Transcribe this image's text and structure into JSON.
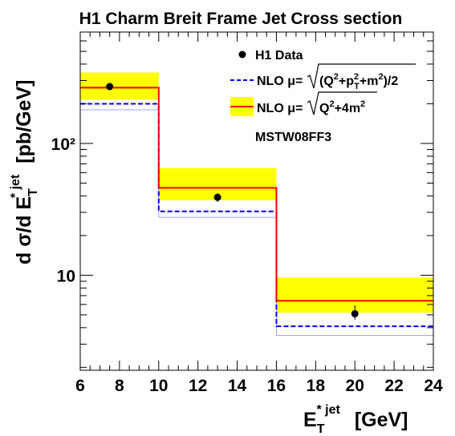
{
  "chart_data": {
    "type": "line",
    "title": "H1 Charm Breit Frame Jet Cross section",
    "xlabel": {
      "main": "E",
      "sub": "T",
      "sup": "* jet",
      "unit": "[GeV]"
    },
    "ylabel": {
      "main": "d σ/d E",
      "sub": "T",
      "sup": "* jet",
      "unit": "[pb/GeV]"
    },
    "xlim": [
      6,
      24
    ],
    "ylim": [
      1.9,
      700
    ],
    "yscale": "log",
    "grid": false,
    "legend_position": "top-right",
    "x_ticks": [
      6,
      8,
      10,
      12,
      14,
      16,
      18,
      20,
      22,
      24
    ],
    "y_ticks": [
      {
        "value": 10,
        "label": "10"
      },
      {
        "value": 100,
        "label": "10²"
      }
    ],
    "bins": [
      [
        6,
        10
      ],
      [
        10,
        16
      ],
      [
        16,
        24
      ]
    ],
    "series": [
      {
        "name": "H1 Data",
        "kind": "points",
        "color": "#000000",
        "x": [
          7.5,
          13,
          20
        ],
        "y": [
          270,
          39,
          5.1
        ],
        "y_err": [
          [
            15,
            15
          ],
          [
            3,
            3
          ],
          [
            0.5,
            0.8
          ]
        ]
      },
      {
        "name": "NLO μ = √((Q²+p²T+m²)/2)",
        "kind": "step",
        "color": "#0000ff",
        "dashed": true,
        "y": [
          200,
          30.5,
          4.1
        ],
        "band_lower": [
          180,
          27.5,
          3.5
        ]
      },
      {
        "name": "NLO μ = √(Q²+4m²)",
        "kind": "step",
        "color": "#ff0000",
        "band_color": "#ffff00",
        "y": [
          265,
          46,
          6.4
        ],
        "band": [
          [
            215,
            345
          ],
          [
            37,
            65
          ],
          [
            5.2,
            9.6
          ]
        ]
      }
    ],
    "legend": {
      "data_label": "H1 Data",
      "nlo1_prefix": "NLO μ=",
      "nlo2_prefix": "NLO μ=",
      "note": "MSTW08FF3"
    }
  }
}
